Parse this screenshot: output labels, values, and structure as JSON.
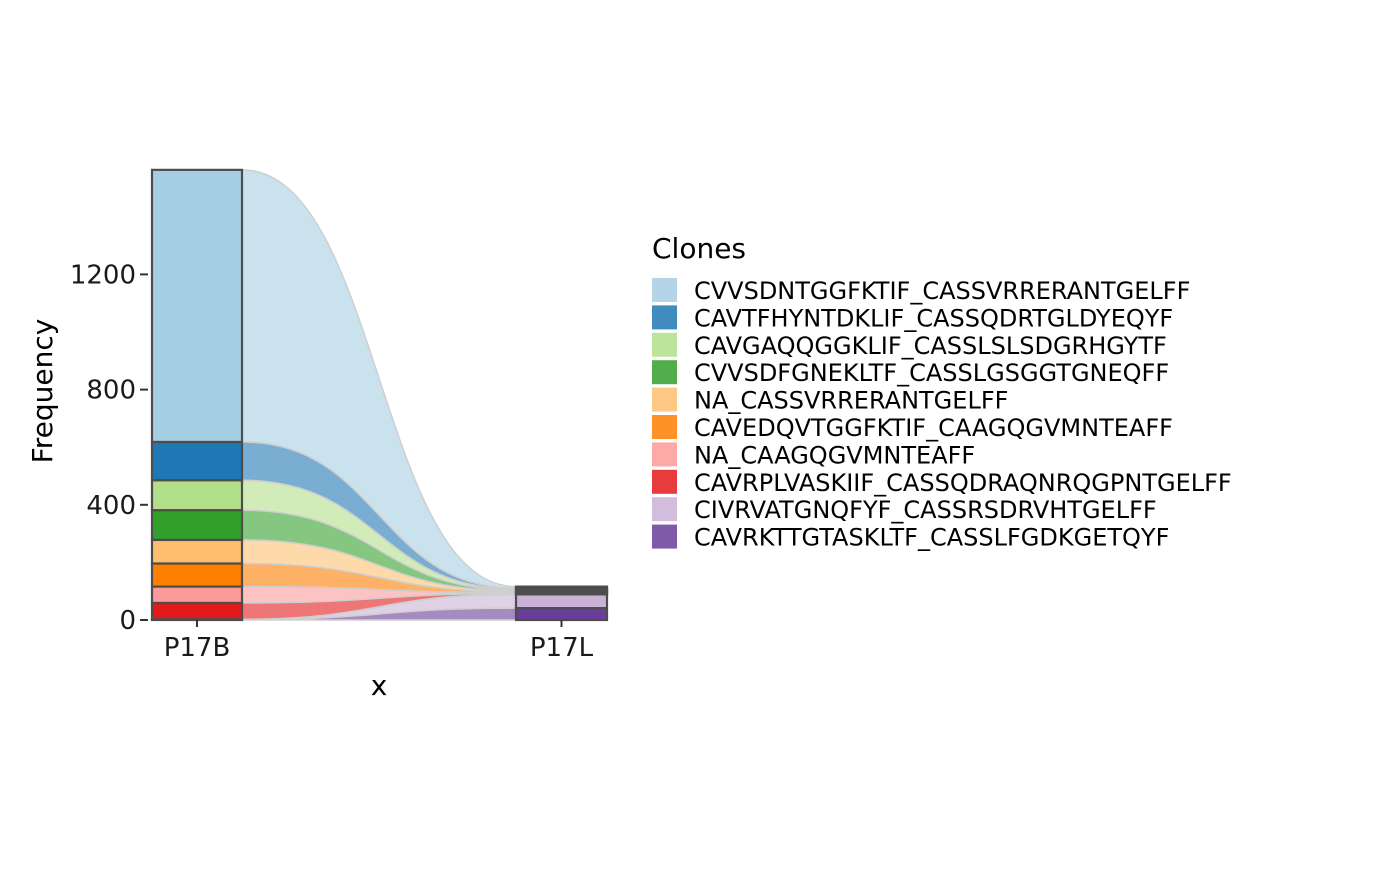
{
  "chart_data": {
    "type": "alluvial",
    "xlabel": "x",
    "ylabel": "Frequency",
    "categories": [
      "P17B",
      "P17L"
    ],
    "ylim": [
      0,
      1585
    ],
    "yticks": [
      0,
      400,
      800,
      1200
    ],
    "grid": false,
    "legend": {
      "title": "Clones",
      "position": "right"
    },
    "series": [
      {
        "name": "CVVSDNTGGFKTIF_CASSVRRERANTGELFF",
        "color": "#a6cee3",
        "values": [
          945,
          6
        ]
      },
      {
        "name": "CAVTFHYNTDKLIF_CASSQDRTGLDYEQYF",
        "color": "#1f78b4",
        "values": [
          133,
          3
        ]
      },
      {
        "name": "CAVGAQQGGKLIF_CASSLSLSDGRHGYTF",
        "color": "#b2df8a",
        "values": [
          104,
          3
        ]
      },
      {
        "name": "CVVSDFGNEKLTF_CASSLGSGGTGNEQFF",
        "color": "#33a02c",
        "values": [
          103,
          3
        ]
      },
      {
        "name": "NA_CASSVRRERANTGELFF",
        "color": "#fdbf6f",
        "values": [
          82,
          3
        ]
      },
      {
        "name": "CAVEDQVTGGFKTIF_CAAGQGVMNTEAFF",
        "color": "#ff7f00",
        "values": [
          80,
          3
        ]
      },
      {
        "name": "NA_CAAGQGVMNTEAFF",
        "color": "#fb9a99",
        "values": [
          57,
          3
        ]
      },
      {
        "name": "CAVRPLVASKIIF_CASSQDRAQNRQGPNTGELFF",
        "color": "#e31a1c",
        "values": [
          57,
          3
        ]
      },
      {
        "name": "CIVRVATGNQFYF_CASSRSDRVHTGELFF",
        "color": "#cab2d6",
        "values": [
          1,
          48
        ]
      },
      {
        "name": "CAVRKTTGTASKLTF_CASSLFGDKGETQYF",
        "color": "#6a3d9a",
        "values": [
          1,
          41
        ]
      }
    ]
  }
}
